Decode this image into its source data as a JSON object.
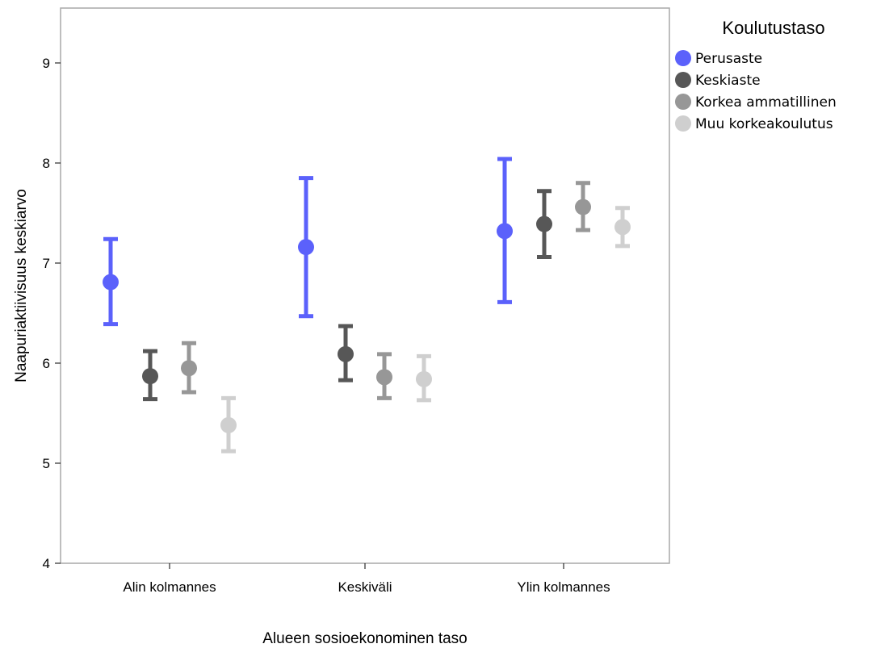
{
  "chart_data": {
    "type": "scatter",
    "xlabel": "Alueen sosioekonominen taso",
    "ylabel": "Naapuriaktiivisuus keskiarvo",
    "ylim": [
      4,
      9.5
    ],
    "yticks": [
      "4",
      "5",
      "6",
      "7",
      "8",
      "9"
    ],
    "categories": [
      "Alin kolmannes",
      "Keskiväli",
      "Ylin kolmannes"
    ],
    "legend_title": "Koulutustaso",
    "legend_position": "top-right",
    "grid": false,
    "series": [
      {
        "name": "Perusaste",
        "color": "#5b61fb",
        "values": [
          6.81,
          7.16,
          7.32
        ],
        "lower": [
          6.39,
          6.47,
          6.61
        ],
        "upper": [
          7.24,
          7.85,
          8.04
        ]
      },
      {
        "name": "Keskiaste",
        "color": "#575757",
        "values": [
          5.87,
          6.09,
          7.39
        ],
        "lower": [
          5.64,
          5.83,
          7.06
        ],
        "upper": [
          6.12,
          6.37,
          7.72
        ]
      },
      {
        "name": "Korkea ammatillinen",
        "color": "#979797",
        "values": [
          5.95,
          5.86,
          7.56
        ],
        "lower": [
          5.71,
          5.65,
          7.33
        ],
        "upper": [
          6.2,
          6.09,
          7.8
        ]
      },
      {
        "name": "Muu korkeakoulutus",
        "color": "#cfcfcf",
        "values": [
          5.38,
          5.84,
          7.36
        ],
        "lower": [
          5.12,
          5.63,
          7.17
        ],
        "upper": [
          5.65,
          6.07,
          7.55
        ]
      }
    ]
  }
}
